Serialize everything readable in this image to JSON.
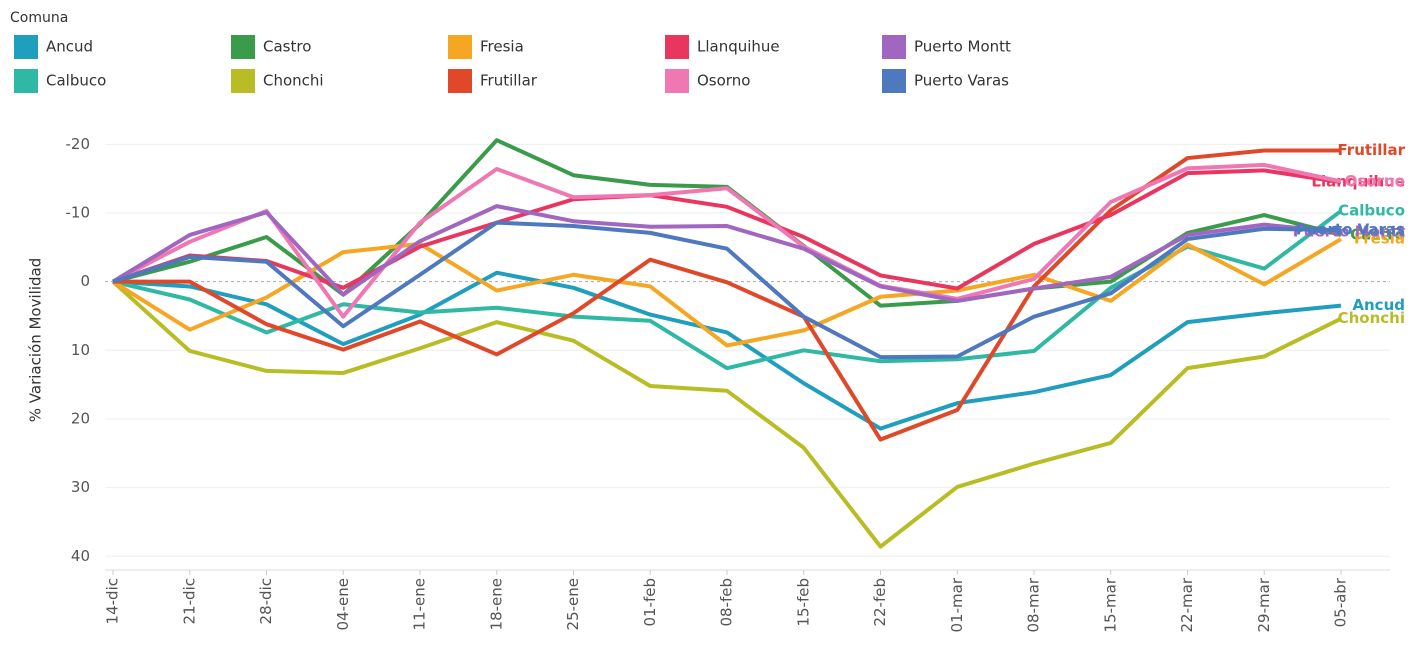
{
  "chart_data": {
    "type": "line",
    "legend_title": "Comuna",
    "y_label": "% Variación Movilidad",
    "categories": [
      "14-dic",
      "21-dic",
      "28-dic",
      "04-ene",
      "11-ene",
      "18-ene",
      "25-ene",
      "01-feb",
      "08-feb",
      "15-feb",
      "22-feb",
      "01-mar",
      "08-mar",
      "15-mar",
      "22-mar",
      "29-mar",
      "05-abr"
    ],
    "ylim": [
      -25,
      42
    ],
    "y_reversed": true,
    "yticks": [
      -20,
      -10,
      0,
      10,
      20,
      30,
      40
    ],
    "grid": true,
    "series": [
      {
        "name": "Ancud",
        "color": "#1f9ebd",
        "values": [
          0,
          0.7,
          3.3,
          9.1,
          4.8,
          -1.3,
          0.9,
          4.8,
          7.4,
          14.8,
          21.4,
          17.7,
          16.1,
          13.6,
          5.9,
          4.6,
          3.5
        ]
      },
      {
        "name": "Calbuco",
        "color": "#2fb8a4",
        "values": [
          0,
          2.6,
          7.4,
          3.3,
          4.5,
          3.8,
          5.1,
          5.7,
          12.6,
          10,
          11.6,
          11.3,
          10.1,
          0.9,
          -5.1,
          -1.9,
          -10.3
        ]
      },
      {
        "name": "Castro",
        "color": "#3a9c4a",
        "values": [
          0,
          -2.9,
          -6.5,
          1.9,
          -8.4,
          -20.6,
          -15.5,
          -14.1,
          -13.8,
          -5.2,
          3.5,
          2.8,
          1,
          0,
          -7.1,
          -9.7,
          -6.8
        ]
      },
      {
        "name": "Chonchi",
        "color": "#b8bd26",
        "values": [
          0,
          10.1,
          13,
          13.3,
          9.7,
          5.9,
          8.6,
          15.2,
          15.9,
          24.2,
          38.6,
          29.9,
          26.5,
          23.5,
          12.6,
          10.9,
          5.4
        ]
      },
      {
        "name": "Fresia",
        "color": "#f5a623",
        "values": [
          0,
          7,
          2.3,
          -4.3,
          -5.5,
          1.3,
          -1,
          0.7,
          9.3,
          7.1,
          2.2,
          1.3,
          -1,
          2.8,
          -5.4,
          0.4,
          -6.2
        ]
      },
      {
        "name": "Frutillar",
        "color": "#e0482a",
        "values": [
          0,
          0,
          6.2,
          9.9,
          5.8,
          10.6,
          4.6,
          -3.2,
          0.1,
          5.1,
          23,
          18.7,
          0.7,
          -10.4,
          -18,
          -19.1,
          -19.1
        ]
      },
      {
        "name": "Llanquihue",
        "color": "#e8365e",
        "values": [
          0,
          -3.8,
          -3,
          0.9,
          -5.1,
          -8.6,
          -12,
          -12.6,
          -10.9,
          -6.5,
          -0.9,
          1,
          -5.5,
          -9.7,
          -15.8,
          -16.2,
          -14.5
        ]
      },
      {
        "name": "Osorno",
        "color": "#ef78b2",
        "values": [
          0,
          -5.8,
          -10.3,
          5.1,
          -8.6,
          -16.4,
          -12.3,
          -12.6,
          -13.6,
          -5.1,
          0.6,
          2.5,
          -0.4,
          -11.6,
          -16.5,
          -17,
          -14.6
        ]
      },
      {
        "name": "Puerto Montt",
        "color": "#a066c0",
        "values": [
          0,
          -6.8,
          -10.1,
          1.9,
          -5.9,
          -11,
          -8.8,
          -8,
          -8.1,
          -4.8,
          0.7,
          2.8,
          1,
          -0.7,
          -6.8,
          -8.3,
          -7.2
        ]
      },
      {
        "name": "Puerto Varas",
        "color": "#4e79bf",
        "values": [
          0,
          -3.6,
          -2.9,
          6.5,
          -1,
          -8.6,
          -8.1,
          -7.1,
          -4.8,
          5.1,
          11,
          10.9,
          5.1,
          1.7,
          -6.2,
          -7.7,
          -7.5
        ]
      }
    ]
  }
}
